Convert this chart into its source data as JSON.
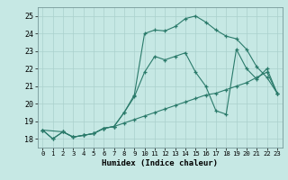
{
  "xlabel": "Humidex (Indice chaleur)",
  "xlim": [
    -0.5,
    23.5
  ],
  "ylim": [
    17.5,
    25.5
  ],
  "yticks": [
    18,
    19,
    20,
    21,
    22,
    23,
    24,
    25
  ],
  "xticks": [
    0,
    1,
    2,
    3,
    4,
    5,
    6,
    7,
    8,
    9,
    10,
    11,
    12,
    13,
    14,
    15,
    16,
    17,
    18,
    19,
    20,
    21,
    22,
    23
  ],
  "background_color": "#c6e8e4",
  "grid_color": "#aad0cc",
  "line_color": "#2a7a6a",
  "series_bottom": {
    "x": [
      0,
      1,
      2,
      3,
      4,
      5,
      6,
      7,
      8,
      9,
      10,
      11,
      12,
      13,
      14,
      15,
      16,
      17,
      18,
      19,
      20,
      21,
      22,
      23
    ],
    "y": [
      18.5,
      18.0,
      18.4,
      18.1,
      18.2,
      18.3,
      18.6,
      18.7,
      18.9,
      19.1,
      19.3,
      19.5,
      19.7,
      19.9,
      20.1,
      20.3,
      20.5,
      20.6,
      20.8,
      21.0,
      21.2,
      21.5,
      21.8,
      20.6
    ]
  },
  "series_middle": {
    "x": [
      0,
      1,
      2,
      3,
      4,
      5,
      6,
      7,
      8,
      9,
      10,
      11,
      12,
      13,
      14,
      15,
      16,
      17,
      18,
      19,
      20,
      21,
      22,
      23
    ],
    "y": [
      18.5,
      18.0,
      18.4,
      18.1,
      18.2,
      18.3,
      18.6,
      18.7,
      19.5,
      20.4,
      21.8,
      22.7,
      22.5,
      22.7,
      22.9,
      21.8,
      21.0,
      19.6,
      19.4,
      23.1,
      22.0,
      21.4,
      22.0,
      20.6
    ]
  },
  "series_top": {
    "x": [
      0,
      2,
      3,
      4,
      5,
      6,
      7,
      8,
      9,
      10,
      11,
      12,
      13,
      14,
      15,
      16,
      17,
      18,
      19,
      20,
      21,
      22,
      23
    ],
    "y": [
      18.5,
      18.4,
      18.1,
      18.2,
      18.3,
      18.6,
      18.7,
      19.5,
      20.5,
      24.0,
      24.2,
      24.15,
      24.4,
      24.85,
      25.0,
      24.65,
      24.2,
      23.85,
      23.7,
      23.1,
      22.1,
      21.5,
      20.6
    ]
  }
}
